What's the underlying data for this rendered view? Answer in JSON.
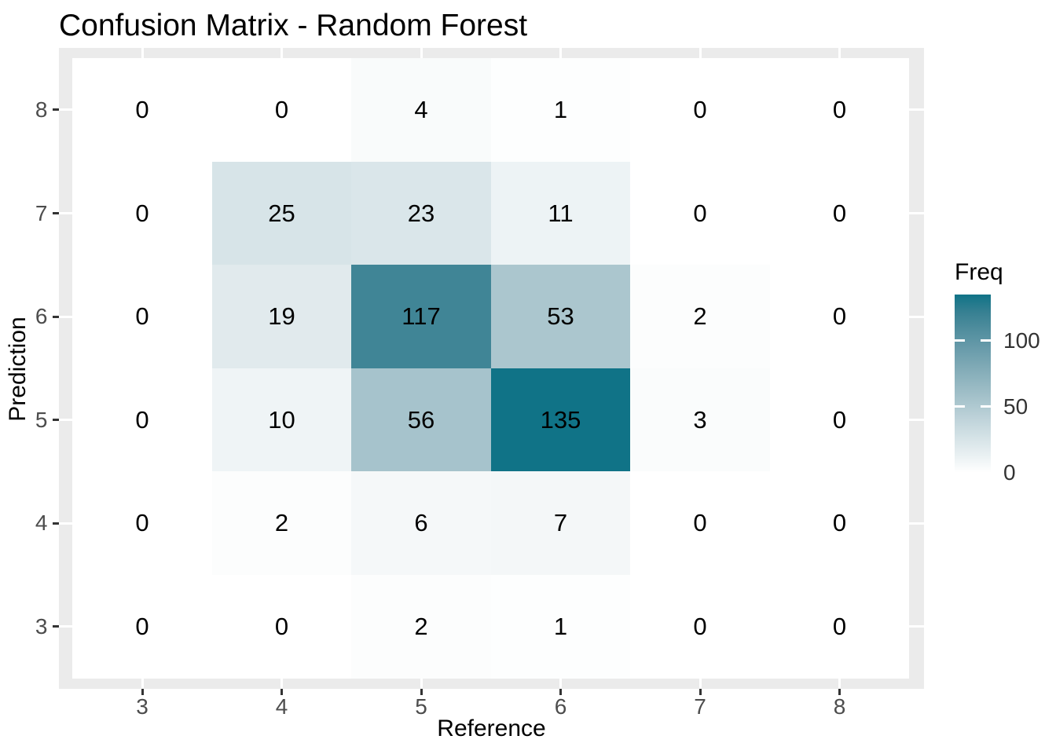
{
  "chart_data": {
    "type": "heatmap",
    "title": "Confusion Matrix - Random Forest",
    "xlabel": "Reference",
    "ylabel": "Prediction",
    "x_categories": [
      "3",
      "4",
      "5",
      "6",
      "7",
      "8"
    ],
    "y_categories": [
      "8",
      "7",
      "6",
      "5",
      "4",
      "3"
    ],
    "rows": [
      {
        "prediction": "8",
        "values": [
          0,
          0,
          4,
          1,
          0,
          0
        ]
      },
      {
        "prediction": "7",
        "values": [
          0,
          25,
          23,
          11,
          0,
          0
        ]
      },
      {
        "prediction": "6",
        "values": [
          0,
          19,
          117,
          53,
          2,
          0
        ]
      },
      {
        "prediction": "5",
        "values": [
          0,
          10,
          56,
          135,
          3,
          0
        ]
      },
      {
        "prediction": "4",
        "values": [
          0,
          2,
          6,
          7,
          0,
          0
        ]
      },
      {
        "prediction": "3",
        "values": [
          0,
          0,
          2,
          1,
          0,
          0
        ]
      }
    ],
    "legend": {
      "title": "Freq",
      "tick_values": [
        0,
        50,
        100
      ],
      "limits": [
        0,
        135
      ],
      "position": "right"
    },
    "style": {
      "gradient_low": "#FFFFFF",
      "gradient_high": "#107387",
      "panel_background": "#EBEBEB",
      "grid_color": "#FFFFFF",
      "tick_mark_color": "#333333",
      "axis_text_color": "#4D4D4D",
      "value_text_color": "#000000",
      "grid": "major-only"
    }
  }
}
